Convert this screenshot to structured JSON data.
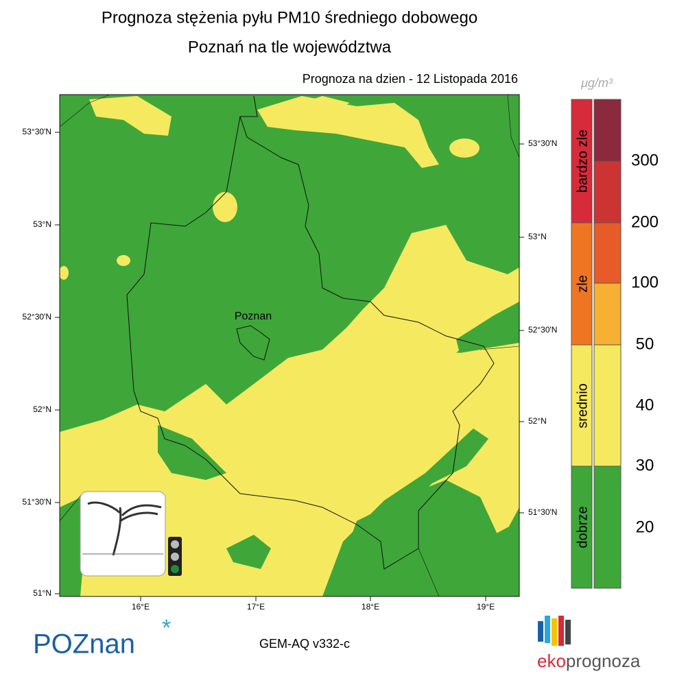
{
  "header": {
    "title": "Prognoza stężenia pyłu PM10 średniego dobowego",
    "subtitle": "Poznań na tle województwa",
    "date": "Prognoza na dzien -  12 Listopada 2016"
  },
  "map": {
    "lat_labels_left": [
      "53°30'N",
      "53°N",
      "52°30'N",
      "52°N",
      "51°30'N",
      "51°N"
    ],
    "lat_labels_right": [
      "53°30'N",
      "53°N",
      "52°30'N",
      "52°N",
      "51°30'N"
    ],
    "lon_labels": [
      "16°E",
      "17°E",
      "18°E",
      "19°E"
    ],
    "city": "Poznan"
  },
  "legend": {
    "unit": "μg/m³",
    "categories": [
      "bardzo zle",
      "zle",
      "srednio",
      "dobrze"
    ],
    "levels": [
      300,
      200,
      100,
      50,
      40,
      30,
      20
    ]
  },
  "footer": {
    "city_logo": "POZnan",
    "model": "GEM-AQ v332-c",
    "brand_left": "eko",
    "brand_right": "prognoza"
  }
}
